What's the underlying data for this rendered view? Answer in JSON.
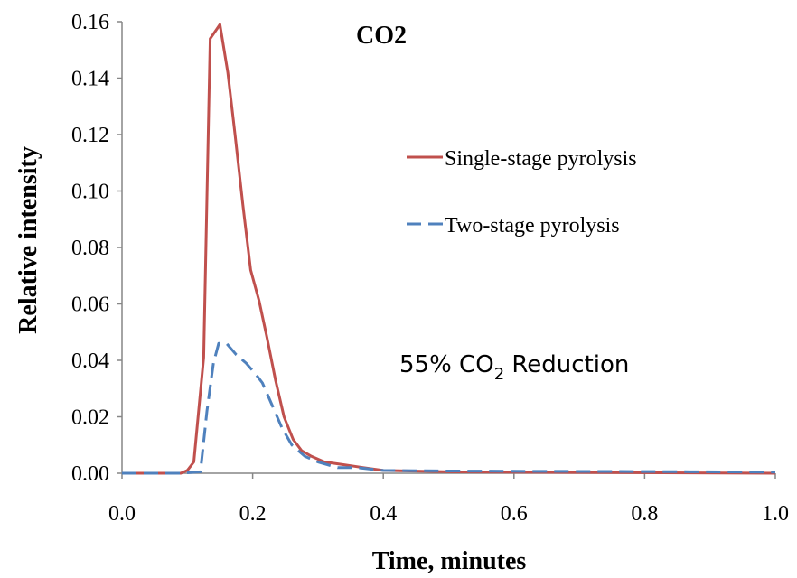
{
  "chart_data": {
    "type": "line",
    "title": "CO2",
    "xlabel": "Time, minutes",
    "ylabel": "Relative intensity",
    "xlim": [
      0,
      1
    ],
    "ylim": [
      0,
      0.16
    ],
    "x_ticks": [
      "0.0",
      "0.2",
      "0.4",
      "0.6",
      "0.8",
      "1.0"
    ],
    "y_ticks": [
      "0.00",
      "0.02",
      "0.04",
      "0.06",
      "0.08",
      "0.10",
      "0.12",
      "0.14",
      "0.16"
    ],
    "grid": false,
    "legend_position": "right",
    "annotation": {
      "prefix": "55% CO",
      "subscript": "2",
      "suffix": " Reduction"
    },
    "series": [
      {
        "name": "Single-stage pyrolysis",
        "color": "#c0504d",
        "dash": "solid",
        "points": [
          [
            0.0,
            0.0
          ],
          [
            0.05,
            0.0
          ],
          [
            0.09,
            0.0
          ],
          [
            0.1,
            0.001
          ],
          [
            0.11,
            0.004
          ],
          [
            0.125,
            0.041
          ],
          [
            0.135,
            0.154
          ],
          [
            0.15,
            0.159
          ],
          [
            0.162,
            0.142
          ],
          [
            0.173,
            0.12
          ],
          [
            0.185,
            0.095
          ],
          [
            0.197,
            0.072
          ],
          [
            0.21,
            0.061
          ],
          [
            0.222,
            0.048
          ],
          [
            0.235,
            0.033
          ],
          [
            0.248,
            0.02
          ],
          [
            0.262,
            0.012
          ],
          [
            0.275,
            0.008
          ],
          [
            0.29,
            0.006
          ],
          [
            0.31,
            0.004
          ],
          [
            0.34,
            0.003
          ],
          [
            0.37,
            0.002
          ],
          [
            0.4,
            0.001
          ],
          [
            0.5,
            0.0005
          ],
          [
            0.7,
            0.0003
          ],
          [
            1.0,
            0.0
          ]
        ]
      },
      {
        "name": "Two-stage pyrolysis",
        "color": "#4f81bd",
        "dash": "dashed",
        "points": [
          [
            0.0,
            0.0
          ],
          [
            0.09,
            0.0
          ],
          [
            0.12,
            0.0005
          ],
          [
            0.13,
            0.022
          ],
          [
            0.14,
            0.039
          ],
          [
            0.148,
            0.046
          ],
          [
            0.16,
            0.046
          ],
          [
            0.175,
            0.042
          ],
          [
            0.19,
            0.039
          ],
          [
            0.205,
            0.035
          ],
          [
            0.215,
            0.032
          ],
          [
            0.23,
            0.024
          ],
          [
            0.245,
            0.016
          ],
          [
            0.26,
            0.01
          ],
          [
            0.28,
            0.006
          ],
          [
            0.3,
            0.004
          ],
          [
            0.33,
            0.002
          ],
          [
            0.36,
            0.002
          ],
          [
            0.4,
            0.001
          ],
          [
            0.5,
            0.0008
          ],
          [
            0.6,
            0.0007
          ],
          [
            0.8,
            0.0006
          ],
          [
            1.0,
            0.0004
          ]
        ]
      }
    ]
  }
}
